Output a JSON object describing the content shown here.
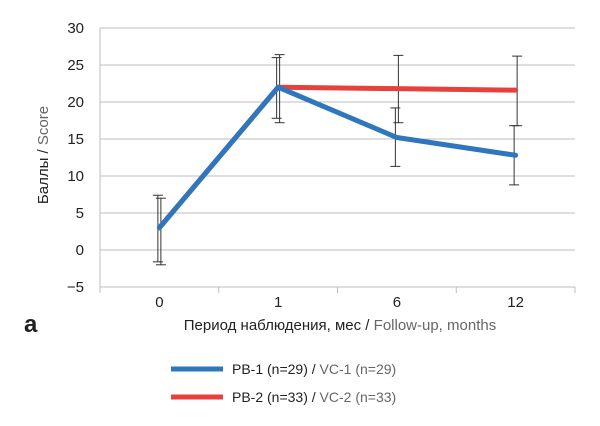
{
  "chart_data": {
    "type": "line",
    "panel_label": "а",
    "ylabel_ru": "Баллы",
    "ylabel_en": "Score",
    "xlabel_ru": "Период наблюдения, мес",
    "xlabel_en": "Follow-up, months",
    "label_separator": " / ",
    "categories": [
      "0",
      "1",
      "6",
      "12"
    ],
    "y_ticks": [
      30,
      25,
      20,
      15,
      10,
      5,
      0,
      -5
    ],
    "y_tick_labels": [
      "30",
      "25",
      "20",
      "15",
      "10",
      "5",
      "0",
      "−5"
    ],
    "ylim": [
      -5,
      30
    ],
    "grid": "horizontal",
    "legend_position": "bottom",
    "series": [
      {
        "name": "РВ-1 (n=29)",
        "name_en": "VC-1 (n=29)",
        "color": "#2E77BC",
        "values": [
          3,
          22,
          15.2,
          12.8
        ],
        "error_high": [
          7.4,
          26,
          19.2,
          16.8
        ],
        "error_low": [
          -1.6,
          17.8,
          11.3,
          8.8
        ]
      },
      {
        "name": "РВ-2 (n=33)",
        "name_en": "VC-2 (n=33)",
        "color": "#E8403D",
        "values": [
          3,
          22,
          21.8,
          21.6
        ],
        "error_high": [
          7,
          26.4,
          26.3,
          26.2
        ],
        "error_low": [
          -2,
          17.2,
          17.2,
          16.8
        ]
      }
    ]
  }
}
